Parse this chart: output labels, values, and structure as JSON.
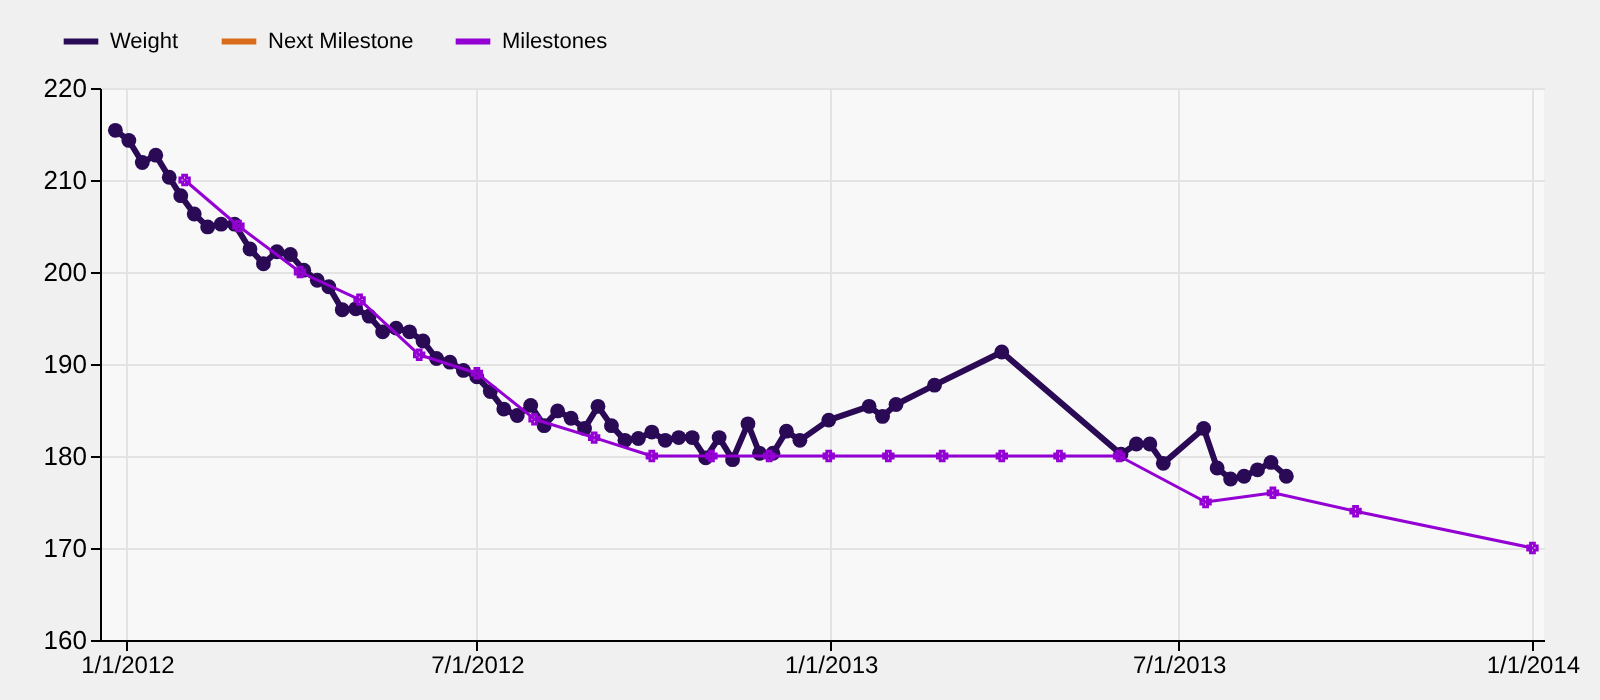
{
  "chart_data": {
    "type": "line",
    "legend": "top left",
    "grid": true,
    "xlim": [
      "2011-12-18",
      "2014-01-07"
    ],
    "xticks": [
      {
        "value": "2012-01-01",
        "label": "1/1/2012"
      },
      {
        "value": "2012-07-01",
        "label": "7/1/2012"
      },
      {
        "value": "2013-01-01",
        "label": "1/1/2013"
      },
      {
        "value": "2013-07-01",
        "label": "7/1/2013"
      },
      {
        "value": "2014-01-01",
        "label": "1/1/2014"
      }
    ],
    "ylim": [
      160,
      220
    ],
    "yticks": [
      160,
      170,
      180,
      190,
      200,
      210,
      220
    ],
    "series": [
      {
        "name": "Weight",
        "color": "#2a0a55",
        "marker": "circle",
        "x": [
          "2011-12-26",
          "2012-01-02",
          "2012-01-09",
          "2012-01-16",
          "2012-01-23",
          "2012-01-29",
          "2012-02-05",
          "2012-02-12",
          "2012-02-19",
          "2012-02-26",
          "2012-03-05",
          "2012-03-12",
          "2012-03-19",
          "2012-03-26",
          "2012-04-02",
          "2012-04-09",
          "2012-04-15",
          "2012-04-22",
          "2012-04-29",
          "2012-05-06",
          "2012-05-13",
          "2012-05-20",
          "2012-05-27",
          "2012-06-03",
          "2012-06-10",
          "2012-06-17",
          "2012-06-24",
          "2012-07-01",
          "2012-07-08",
          "2012-07-15",
          "2012-07-22",
          "2012-07-29",
          "2012-08-05",
          "2012-08-12",
          "2012-08-19",
          "2012-08-26",
          "2012-09-02",
          "2012-09-09",
          "2012-09-16",
          "2012-09-23",
          "2012-09-30",
          "2012-10-07",
          "2012-10-14",
          "2012-10-21",
          "2012-10-28",
          "2012-11-04",
          "2012-11-11",
          "2012-11-19",
          "2012-11-25",
          "2012-12-02",
          "2012-12-09",
          "2012-12-16",
          "2012-12-31",
          "2013-01-21",
          "2013-01-28",
          "2013-02-04",
          "2013-02-24",
          "2013-03-31",
          "2013-06-01",
          "2013-06-09",
          "2013-06-16",
          "2013-06-23",
          "2013-07-14",
          "2013-07-21",
          "2013-07-28",
          "2013-08-04",
          "2013-08-11",
          "2013-08-18",
          "2013-08-26"
        ],
        "values": [
          215.4,
          214.3,
          211.9,
          212.7,
          210.3,
          208.3,
          206.3,
          204.9,
          205.2,
          205.2,
          202.5,
          200.9,
          202.2,
          201.9,
          200.2,
          199.1,
          198.4,
          195.9,
          196.0,
          195.2,
          193.5,
          193.9,
          193.5,
          192.5,
          190.6,
          190.2,
          189.3,
          188.6,
          187.0,
          185.1,
          184.4,
          185.5,
          183.3,
          184.9,
          184.1,
          183.0,
          185.4,
          183.3,
          181.7,
          181.9,
          182.6,
          181.7,
          182.0,
          182.0,
          179.8,
          182.0,
          179.6,
          183.5,
          180.3,
          180.3,
          182.7,
          181.7,
          183.9,
          185.4,
          184.3,
          185.6,
          187.7,
          191.3,
          180.2,
          181.3,
          181.3,
          179.2,
          183.0,
          178.7,
          177.5,
          177.8,
          178.5,
          179.3,
          177.8
        ]
      },
      {
        "name": "Next Milestone",
        "color": "#d86c1a"
      },
      {
        "name": "Milestones",
        "color": "#9400d3",
        "marker": "cross",
        "x": [
          "2012-01-31",
          "2012-02-28",
          "2012-03-31",
          "2012-05-01",
          "2012-06-01",
          "2012-07-01",
          "2012-07-31",
          "2012-08-31",
          "2012-09-30",
          "2012-10-31",
          "2012-11-30",
          "2012-12-31",
          "2013-01-31",
          "2013-02-28",
          "2013-03-31",
          "2013-04-30",
          "2013-05-31",
          "2013-07-15",
          "2013-08-19",
          "2013-10-01",
          "2014-01-01"
        ],
        "values": [
          210,
          205,
          200,
          197,
          191,
          189,
          184,
          182,
          180,
          180,
          180,
          180,
          180,
          180,
          180,
          180,
          180,
          175,
          176,
          174,
          170
        ]
      }
    ]
  }
}
